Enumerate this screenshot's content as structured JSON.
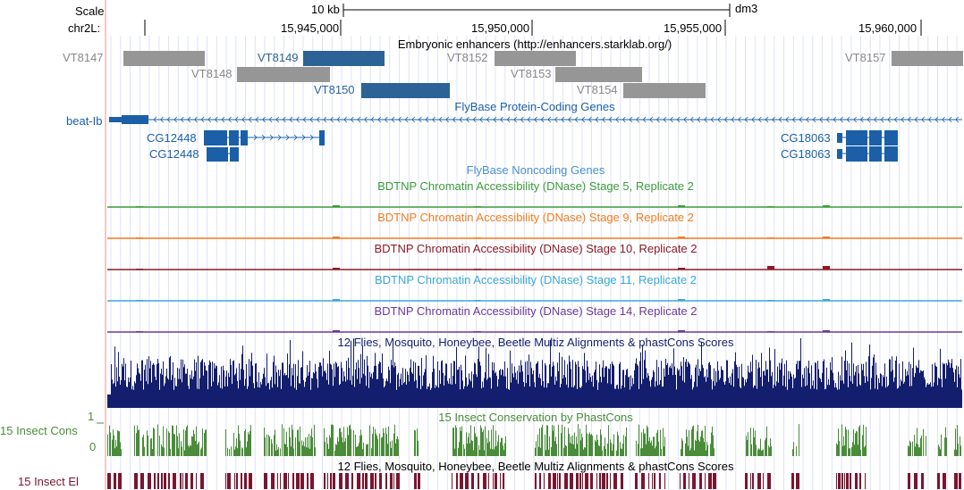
{
  "scale": {
    "row_label": "Scale",
    "bar_text": "10 kb",
    "assembly": "dm3"
  },
  "position": {
    "chrom_label": "chr2L:",
    "ticks": [
      "15,945,000",
      "15,950,000",
      "15,955,000",
      "15,960,000"
    ]
  },
  "enhancers": {
    "title": "Embryonic enhancers (http://enhancers.starklab.org/)",
    "colors": {
      "grey": "#969696",
      "blue": "#2c6296",
      "grey_text": "#888888"
    },
    "items": [
      {
        "name": "VT8147",
        "color": "grey"
      },
      {
        "name": "VT8148",
        "color": "grey"
      },
      {
        "name": "VT8149",
        "color": "blue"
      },
      {
        "name": "VT8150",
        "color": "blue"
      },
      {
        "name": "VT8152",
        "color": "grey"
      },
      {
        "name": "VT8153",
        "color": "grey"
      },
      {
        "name": "VT8154",
        "color": "grey"
      },
      {
        "name": "VT8157",
        "color": "grey"
      }
    ]
  },
  "protein_coding": {
    "title": "FlyBase Protein-Coding Genes",
    "color": "#1a5fa8",
    "genes": [
      "beat-Ib",
      "CG12448",
      "CG12448",
      "CG18063",
      "CG18063"
    ]
  },
  "noncoding": {
    "title": "FlyBase Noncoding Genes",
    "color": "#4a90d0"
  },
  "dnase_tracks": [
    {
      "title": "BDTNP Chromatin Accessibility (DNase) Stage 5, Replicate 2",
      "color": "#3c9c3c"
    },
    {
      "title": "BDTNP Chromatin Accessibility (DNase) Stage 9, Replicate 2",
      "color": "#f07c20"
    },
    {
      "title": "BDTNP Chromatin Accessibility (DNase) Stage 10, Replicate 2",
      "color": "#8c1a26"
    },
    {
      "title": "BDTNP Chromatin Accessibility (DNase) Stage 11, Replicate 2",
      "color": "#3aa8d8"
    },
    {
      "title": "BDTNP Chromatin Accessibility (DNase) Stage 14, Replicate 2",
      "color": "#6a3a9c"
    }
  ],
  "multiz": {
    "title": "12 Flies, Mosquito, Honeybee, Beetle Multiz Alignments & phastCons Scores",
    "color": "#141e6e"
  },
  "phastcons": {
    "title": "15 Insect Conservation by PhastCons",
    "side_label": "15 Insect Cons",
    "axis_max": "1",
    "axis_min": "0",
    "color": "#4a8c3a"
  },
  "elements": {
    "side_label": "15 Insect El",
    "title": "12 Flies, Mosquito, Honeybee, Beetle Multiz Alignments & phastCons Scores",
    "color": "#7a1530"
  }
}
